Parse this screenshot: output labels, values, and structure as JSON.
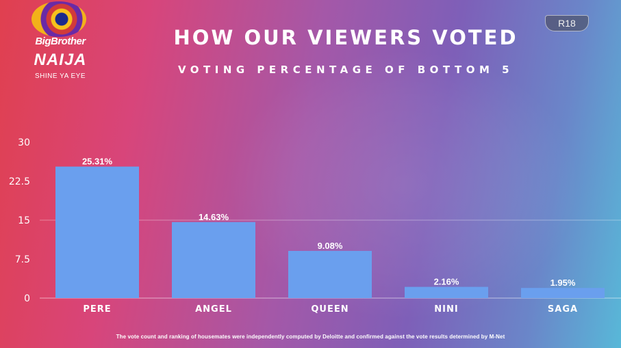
{
  "logo": {
    "line1": "BigBrother",
    "line2": "NAIJA",
    "line3": "SHINE YA EYE"
  },
  "rating_badge": "R18",
  "header": {
    "title": "HOW OUR VIEWERS VOTED"
  },
  "chart_data": {
    "type": "bar",
    "title": "HOW OUR VIEWERS VOTED",
    "subtitle": "VOTING PERCENTAGE OF BOTTOM 5",
    "xlabel": "",
    "ylabel": "",
    "categories": [
      "PERE",
      "ANGEL",
      "QUEEN",
      "NINI",
      "SAGA"
    ],
    "values": [
      25.31,
      14.63,
      9.08,
      2.16,
      1.95
    ],
    "value_labels": [
      "25.31%",
      "14.63%",
      "9.08%",
      "2.16%",
      "1.95%"
    ],
    "yticks": [
      "0",
      "7.5",
      "15",
      "22.5",
      "30"
    ],
    "ylim": [
      0,
      30
    ],
    "grid": "horizontal line at 15",
    "bar_color": "#6a9fee"
  },
  "footnote": "The vote count and ranking of housemates were independently computed by Deloitte and confirmed against the vote results determined by M-Net"
}
